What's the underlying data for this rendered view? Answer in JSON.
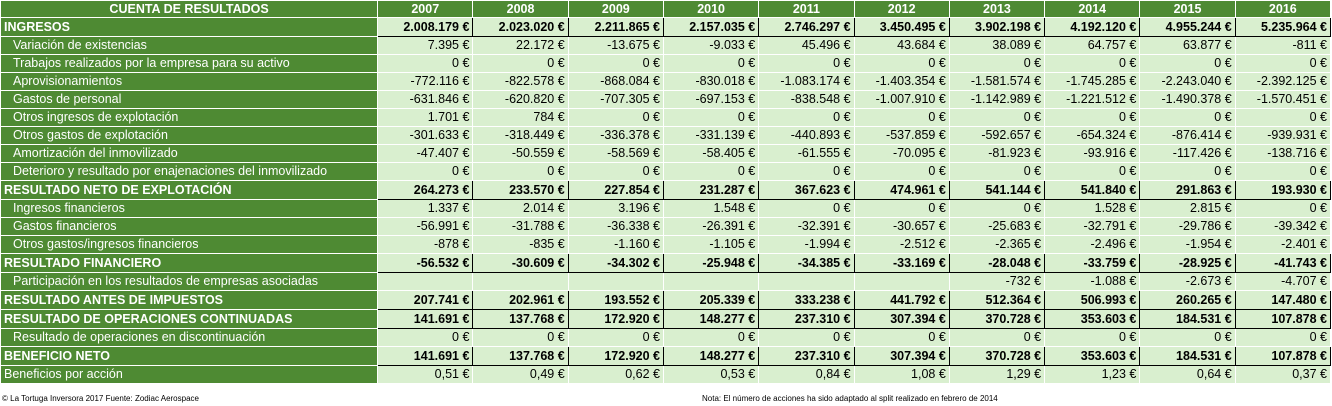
{
  "header": {
    "title": "CUENTA DE RESULTADOS",
    "years": [
      "2007",
      "2008",
      "2009",
      "2010",
      "2011",
      "2012",
      "2013",
      "2014",
      "2015",
      "2016"
    ]
  },
  "rows": [
    {
      "label": "INGRESOS",
      "bold": true,
      "values": [
        "2.008.179 €",
        "2.023.020 €",
        "2.211.865 €",
        "2.157.035 €",
        "2.746.297 €",
        "3.450.495 €",
        "3.902.198 €",
        "4.192.120 €",
        "4.955.244 €",
        "5.235.964 €"
      ]
    },
    {
      "label": "Variación de existencias",
      "bold": false,
      "values": [
        "7.395 €",
        "22.172 €",
        "-13.675 €",
        "-9.033 €",
        "45.496 €",
        "43.684 €",
        "38.089 €",
        "64.757 €",
        "63.877 €",
        "-811 €"
      ]
    },
    {
      "label": "Trabajos realizados por la empresa para su activo",
      "bold": false,
      "values": [
        "0 €",
        "0 €",
        "0 €",
        "0 €",
        "0 €",
        "0 €",
        "0 €",
        "0 €",
        "0 €",
        "0 €"
      ]
    },
    {
      "label": "Aprovisionamientos",
      "bold": false,
      "values": [
        "-772.116 €",
        "-822.578 €",
        "-868.084 €",
        "-830.018 €",
        "-1.083.174 €",
        "-1.403.354 €",
        "-1.581.574 €",
        "-1.745.285 €",
        "-2.243.040 €",
        "-2.392.125 €"
      ]
    },
    {
      "label": "Gastos de personal",
      "bold": false,
      "values": [
        "-631.846 €",
        "-620.820 €",
        "-707.305 €",
        "-697.153 €",
        "-838.548 €",
        "-1.007.910 €",
        "-1.142.989 €",
        "-1.221.512 €",
        "-1.490.378 €",
        "-1.570.451 €"
      ]
    },
    {
      "label": "Otros ingresos de explotación",
      "bold": false,
      "values": [
        "1.701 €",
        "784 €",
        "0 €",
        "0 €",
        "0 €",
        "0 €",
        "0 €",
        "0 €",
        "0 €",
        "0 €"
      ]
    },
    {
      "label": "Otros gastos de explotación",
      "bold": false,
      "values": [
        "-301.633 €",
        "-318.449 €",
        "-336.378 €",
        "-331.139 €",
        "-440.893 €",
        "-537.859 €",
        "-592.657 €",
        "-654.324 €",
        "-876.414 €",
        "-939.931 €"
      ]
    },
    {
      "label": "Amortización del inmovilizado",
      "bold": false,
      "values": [
        "-47.407 €",
        "-50.559 €",
        "-58.569 €",
        "-58.405 €",
        "-61.555 €",
        "-70.095 €",
        "-81.923 €",
        "-93.916 €",
        "-117.426 €",
        "-138.716 €"
      ]
    },
    {
      "label": "Deterioro y resultado por enajenaciones del inmovilizado",
      "bold": false,
      "values": [
        "0 €",
        "0 €",
        "0 €",
        "0 €",
        "0 €",
        "0 €",
        "0 €",
        "0 €",
        "0 €",
        "0 €"
      ]
    },
    {
      "label": "RESULTADO NETO DE EXPLOTACIÓN",
      "bold": true,
      "values": [
        "264.273 €",
        "233.570 €",
        "227.854 €",
        "231.287 €",
        "367.623 €",
        "474.961 €",
        "541.144 €",
        "541.840 €",
        "291.863 €",
        "193.930 €"
      ]
    },
    {
      "label": "Ingresos financieros",
      "bold": false,
      "values": [
        "1.337 €",
        "2.014 €",
        "3.196 €",
        "1.548 €",
        "0 €",
        "0 €",
        "0 €",
        "1.528 €",
        "2.815 €",
        "0 €"
      ]
    },
    {
      "label": "Gastos financieros",
      "bold": false,
      "values": [
        "-56.991 €",
        "-31.788 €",
        "-36.338 €",
        "-26.391 €",
        "-32.391 €",
        "-30.657 €",
        "-25.683 €",
        "-32.791 €",
        "-29.786 €",
        "-39.342 €"
      ]
    },
    {
      "label": "Otros gastos/ingresos financieros",
      "bold": false,
      "values": [
        "-878 €",
        "-835 €",
        "-1.160 €",
        "-1.105 €",
        "-1.994 €",
        "-2.512 €",
        "-2.365 €",
        "-2.496 €",
        "-1.954 €",
        "-2.401 €"
      ]
    },
    {
      "label": "RESULTADO FINANCIERO",
      "bold": true,
      "values": [
        "-56.532 €",
        "-30.609 €",
        "-34.302 €",
        "-25.948 €",
        "-34.385 €",
        "-33.169 €",
        "-28.048 €",
        "-33.759 €",
        "-28.925 €",
        "-41.743 €"
      ]
    },
    {
      "label": "Participación en los resultados de empresas asociadas",
      "bold": false,
      "values": [
        "",
        "",
        "",
        "",
        "",
        "",
        "-732 €",
        "-1.088 €",
        "-2.673 €",
        "-4.707 €"
      ]
    },
    {
      "label": "RESULTADO ANTES DE IMPUESTOS",
      "bold": true,
      "values": [
        "207.741 €",
        "202.961 €",
        "193.552 €",
        "205.339 €",
        "333.238 €",
        "441.792 €",
        "512.364 €",
        "506.993 €",
        "260.265 €",
        "147.480 €"
      ]
    },
    {
      "label": "RESULTADO DE OPERACIONES CONTINUADAS",
      "bold": true,
      "values": [
        "141.691 €",
        "137.768 €",
        "172.920 €",
        "148.277 €",
        "237.310 €",
        "307.394 €",
        "370.728 €",
        "353.603 €",
        "184.531 €",
        "107.878 €"
      ]
    },
    {
      "label": "Resultado de operaciones en discontinuación",
      "bold": false,
      "values": [
        "0 €",
        "0 €",
        "0 €",
        "0 €",
        "0 €",
        "0 €",
        "0 €",
        "0 €",
        "0 €",
        "0 €"
      ]
    },
    {
      "label": "BENEFICIO NETO",
      "bold": true,
      "values": [
        "141.691 €",
        "137.768 €",
        "172.920 €",
        "148.277 €",
        "237.310 €",
        "307.394 €",
        "370.728 €",
        "353.603 €",
        "184.531 €",
        "107.878 €"
      ]
    },
    {
      "label": "Beneficios por acción",
      "bold": false,
      "plain": true,
      "values": [
        "0,51 €",
        "0,49 €",
        "0,62 €",
        "0,53 €",
        "0,84 €",
        "1,08 €",
        "1,29 €",
        "1,23 €",
        "0,64 €",
        "0,37 €"
      ]
    }
  ],
  "footer": {
    "source": "© La Tortuga Inversora 2017 Fuente: Zodiac Aerospace",
    "note": "Nota: El número de acciones ha sido adaptado al split realizado en febrero de 2014"
  }
}
